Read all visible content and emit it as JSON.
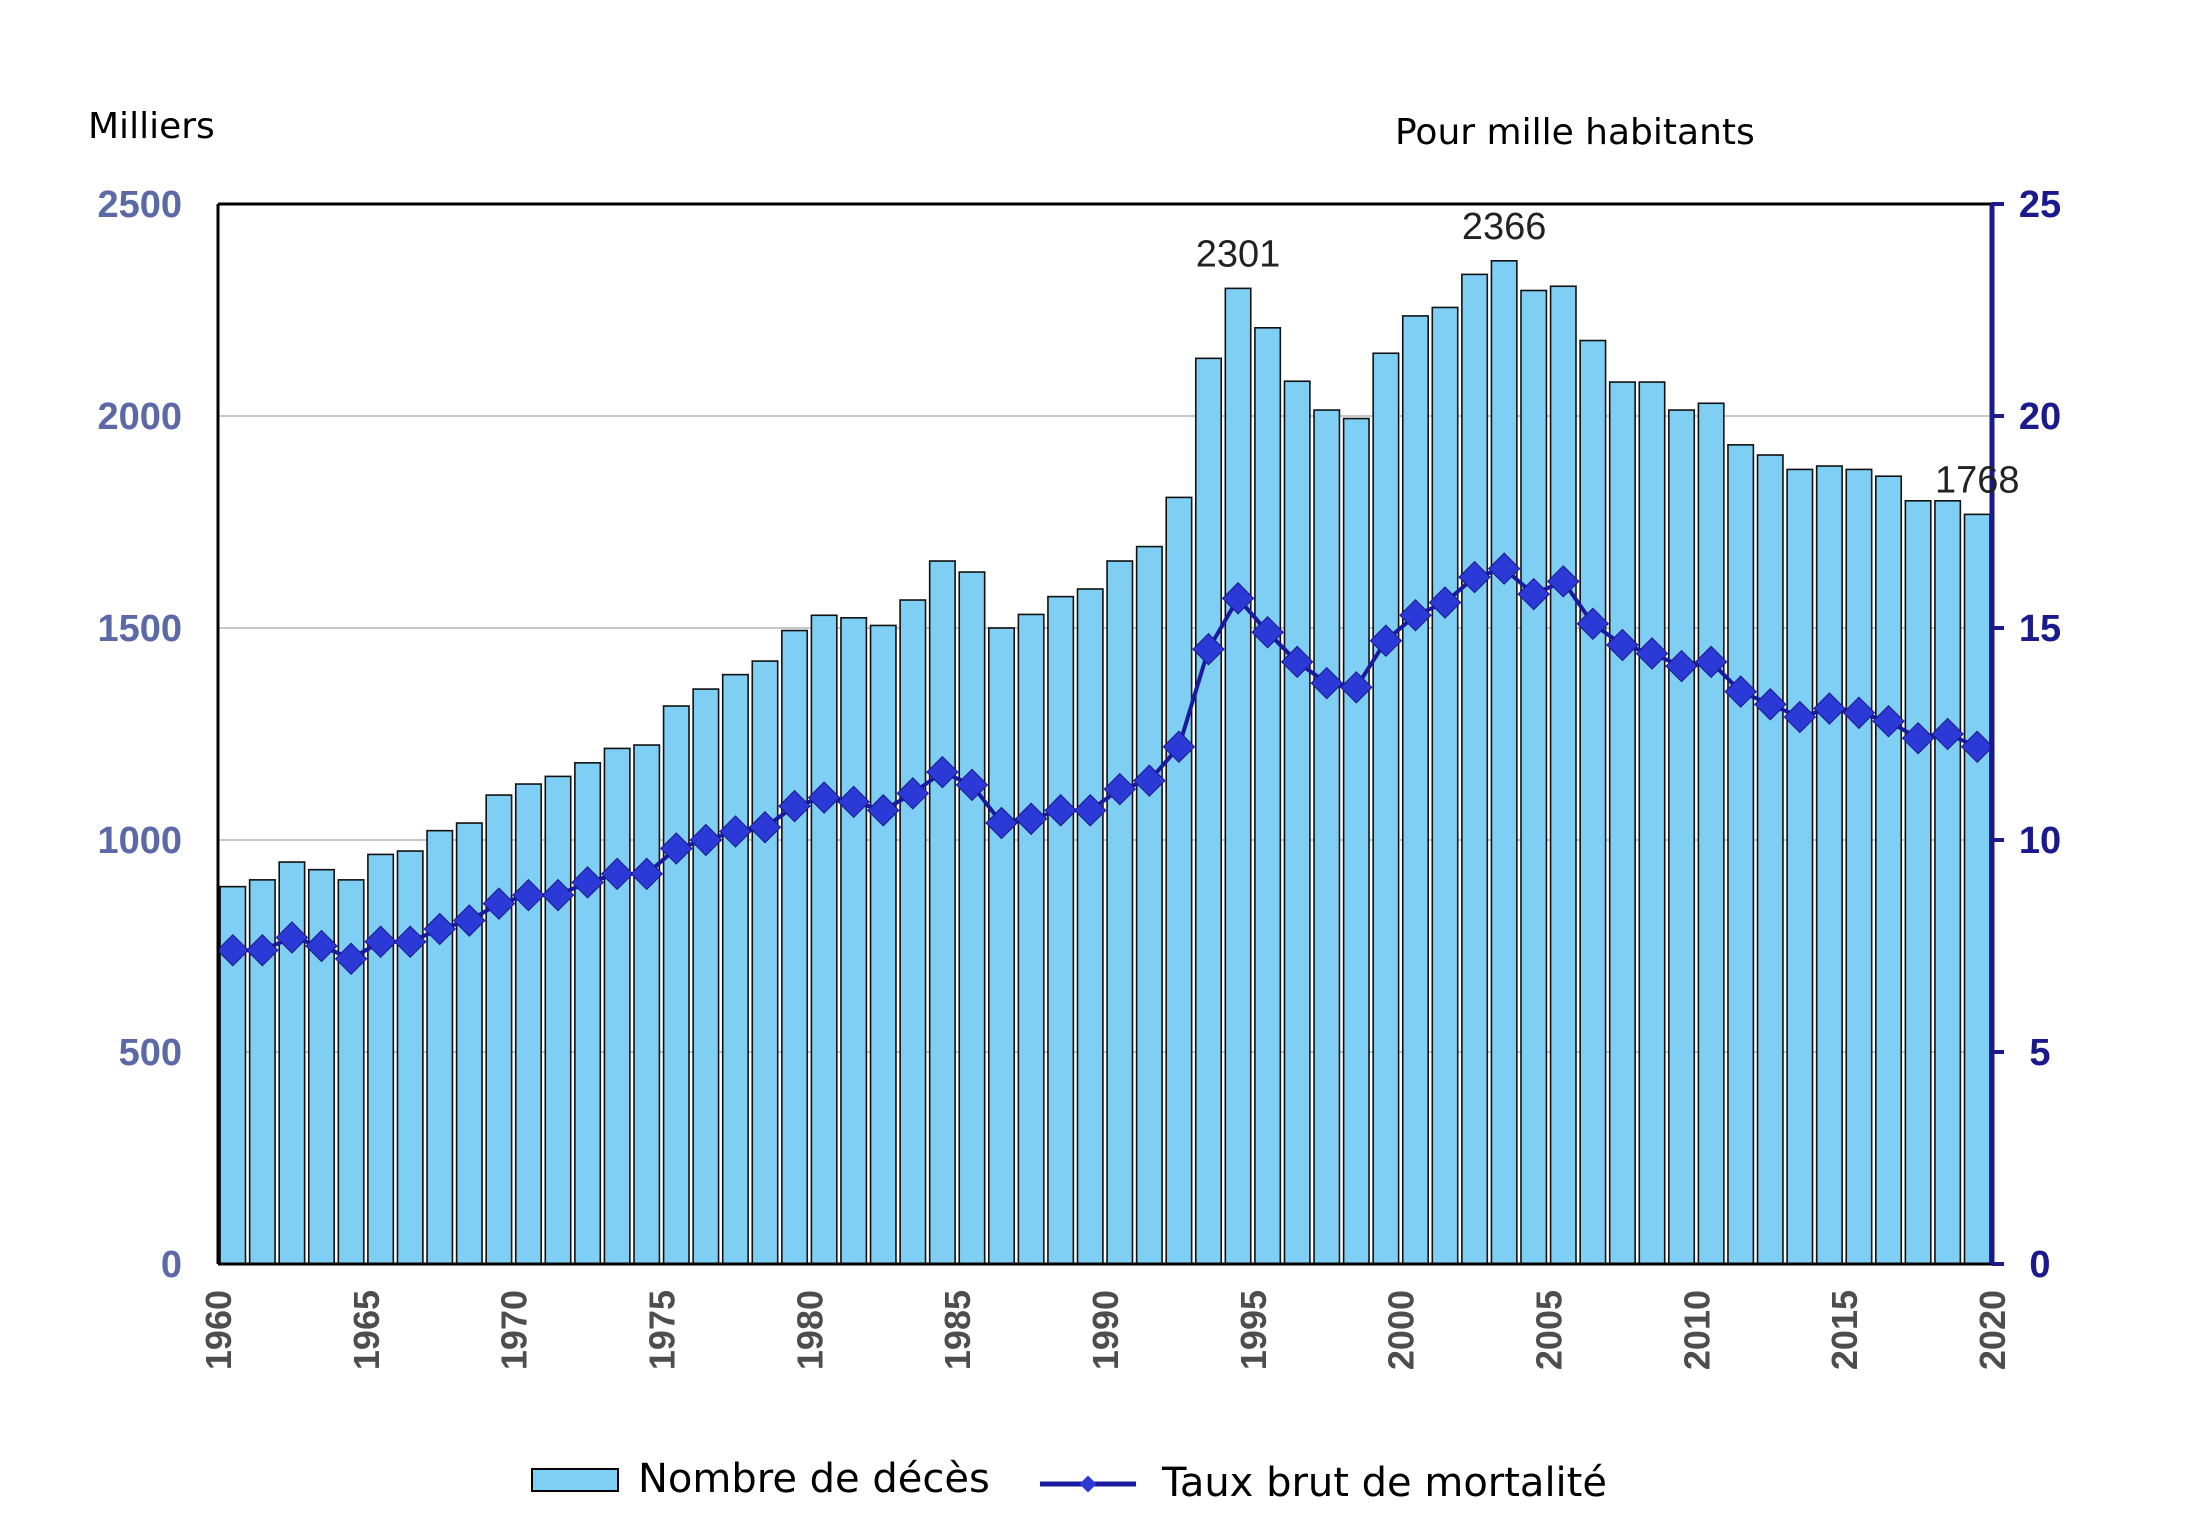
{
  "chart_data": {
    "type": "bar",
    "title": "",
    "y_left_label": "Milliers",
    "y_right_label": "Pour mille habitants",
    "x_ticks": [
      "1960",
      "1965",
      "1970",
      "1975",
      "1980",
      "1985",
      "1990",
      "1995",
      "2000",
      "2005",
      "2010",
      "2015",
      "2020"
    ],
    "y_left_ticks": [
      "0",
      "500",
      "1000",
      "1500",
      "2000",
      "2500"
    ],
    "y_right_ticks": [
      "0",
      "5",
      "10",
      "15",
      "20",
      "25"
    ],
    "y_left_lim": [
      0,
      2500
    ],
    "y_right_lim": [
      0,
      25
    ],
    "x": [
      1960,
      1961,
      1962,
      1963,
      1964,
      1965,
      1966,
      1967,
      1968,
      1969,
      1970,
      1971,
      1972,
      1973,
      1974,
      1975,
      1976,
      1977,
      1978,
      1979,
      1980,
      1981,
      1982,
      1983,
      1984,
      1985,
      1986,
      1987,
      1988,
      1989,
      1990,
      1991,
      1992,
      1993,
      1994,
      1995,
      1996,
      1997,
      1998,
      1999,
      2000,
      2001,
      2002,
      2003,
      2004,
      2005,
      2006,
      2007,
      2008,
      2009,
      2010,
      2011,
      2012,
      2013,
      2014,
      2015,
      2016,
      2017,
      2018,
      2019
    ],
    "grid": true,
    "legend": "bottom",
    "series": [
      {
        "name": "Nombre de décès",
        "type": "bar",
        "axis": "left",
        "color": "#7fcef4",
        "values": [
          890,
          906,
          948,
          930,
          906,
          966,
          974,
          1022,
          1040,
          1106,
          1132,
          1150,
          1182,
          1216,
          1224,
          1316,
          1356,
          1390,
          1422,
          1494,
          1530,
          1524,
          1506,
          1566,
          1658,
          1632,
          1500,
          1532,
          1574,
          1592,
          1658,
          1692,
          1808,
          2136,
          2301,
          2208,
          2082,
          2014,
          1994,
          2148,
          2236,
          2256,
          2334,
          2366,
          2296,
          2306,
          2178,
          2080,
          2080,
          2014,
          2030,
          1932,
          1908,
          1874,
          1882,
          1874,
          1858,
          1800,
          1800,
          1768
        ]
      },
      {
        "name": "Taux brut de mortalité",
        "type": "line",
        "axis": "right",
        "color": "#1a1aa0",
        "values": [
          7.4,
          7.4,
          7.7,
          7.5,
          7.2,
          7.6,
          7.6,
          7.9,
          8.1,
          8.5,
          8.7,
          8.7,
          9.0,
          9.2,
          9.2,
          9.8,
          10.0,
          10.2,
          10.3,
          10.8,
          11.0,
          10.9,
          10.7,
          11.1,
          11.6,
          11.3,
          10.4,
          10.5,
          10.7,
          10.7,
          11.2,
          11.4,
          12.2,
          14.5,
          15.7,
          14.9,
          14.2,
          13.7,
          13.6,
          14.7,
          15.3,
          15.6,
          16.2,
          16.4,
          15.8,
          16.1,
          15.1,
          14.6,
          14.4,
          14.1,
          14.2,
          13.5,
          13.2,
          12.9,
          13.1,
          13.0,
          12.8,
          12.4,
          12.5,
          12.2
        ]
      }
    ],
    "annotations": [
      {
        "text": "2301",
        "year": 1994
      },
      {
        "text": "2366",
        "year": 2003
      },
      {
        "text": "1768",
        "year": 2019
      }
    ],
    "colors": {
      "bar_fill": "#7fcef4",
      "bar_stroke": "#111111",
      "line": "#1a1aa0",
      "marker": "#2b39d6",
      "grid": "#c8c8c8",
      "left_tick": "#5b6aa6",
      "right_tick": "#1a1a8c",
      "x_tick": "#4d4d4d"
    }
  }
}
